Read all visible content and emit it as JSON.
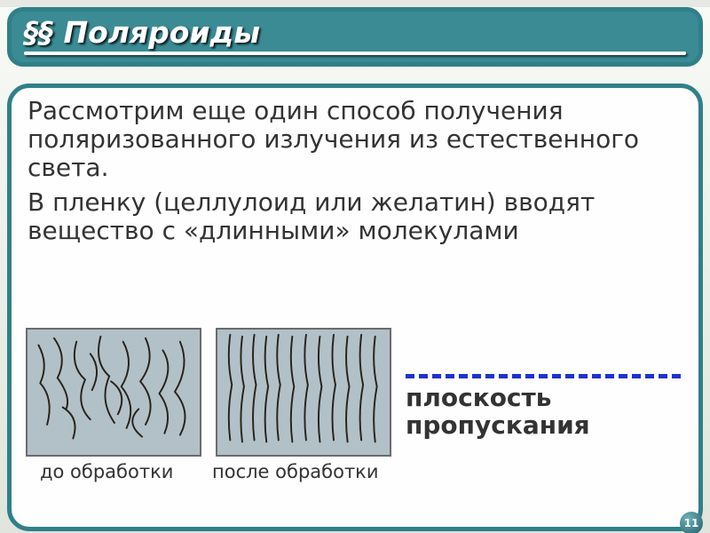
{
  "title": "§§ Поляроиды",
  "paragraph1": "Рассмотрим еще один способ получения поляризованного излучения из естественного света.",
  "paragraph2": "В пленку (целлулоид или желатин) вводят вещество с «длинными» молекулами",
  "captions": {
    "before": "до обработки",
    "after": "после обработки"
  },
  "plane_label_line1": "плоскость",
  "plane_label_line2": "пропускания",
  "page_number": "11",
  "panels": {
    "background": "#b2c0c8",
    "border_color": "#6b6b6b",
    "stroke_color": "#28221a",
    "stroke_width": 2,
    "before": {
      "paths": [
        "M12 18 Q24 40 14 62 Q30 80 22 110",
        "M30 10 Q46 32 34 56 Q50 78 44 92",
        "M56 14 Q48 42 66 58 Q54 86 72 104",
        "M84 8 Q76 38 94 54 Q82 82 100 108",
        "M72 28 Q86 46 74 70",
        "M110 14 Q124 40 108 66 Q126 88 114 114",
        "M136 10 Q148 36 130 60 Q150 84 136 110",
        "M156 24 Q170 46 152 74 Q168 96 158 120",
        "M176 14 Q188 42 170 72 Q190 96 176 122",
        "M96 60 Q116 74 104 98",
        "M40 90 Q60 102 52 126",
        "M128 92 Q112 108 132 124"
      ]
    },
    "after": {
      "paths": [
        "M14 6 Q10 36 16 64 Q10 96 14 128",
        "M28 8 Q24 38 30 66 Q24 98 28 130",
        "M42 6 Q38 36 44 64 Q38 96 42 128",
        "M56 8 Q52 38 58 66 Q52 98 56 130",
        "M70 6 Q66 36 72 64 Q66 96 70 128",
        "M86 8 Q82 38 88 66 Q82 98 86 130",
        "M102 6 Q98 36 104 64 Q98 96 102 128",
        "M118 8 Q114 38 120 66 Q114 98 118 130",
        "M134 6 Q130 36 136 64 Q130 96 134 128",
        "M150 8 Q146 38 152 66 Q146 98 150 130",
        "M166 6 Q162 36 168 64 Q162 96 166 128",
        "M182 8 Q178 38 184 66 Q178 98 182 130"
      ]
    }
  },
  "arrow": {
    "color": "#2030d0",
    "dash": "5px"
  },
  "colors": {
    "frame_border": "#2f8089",
    "title_bg": "#3a8b94",
    "text": "#333333",
    "white": "#ffffff"
  }
}
